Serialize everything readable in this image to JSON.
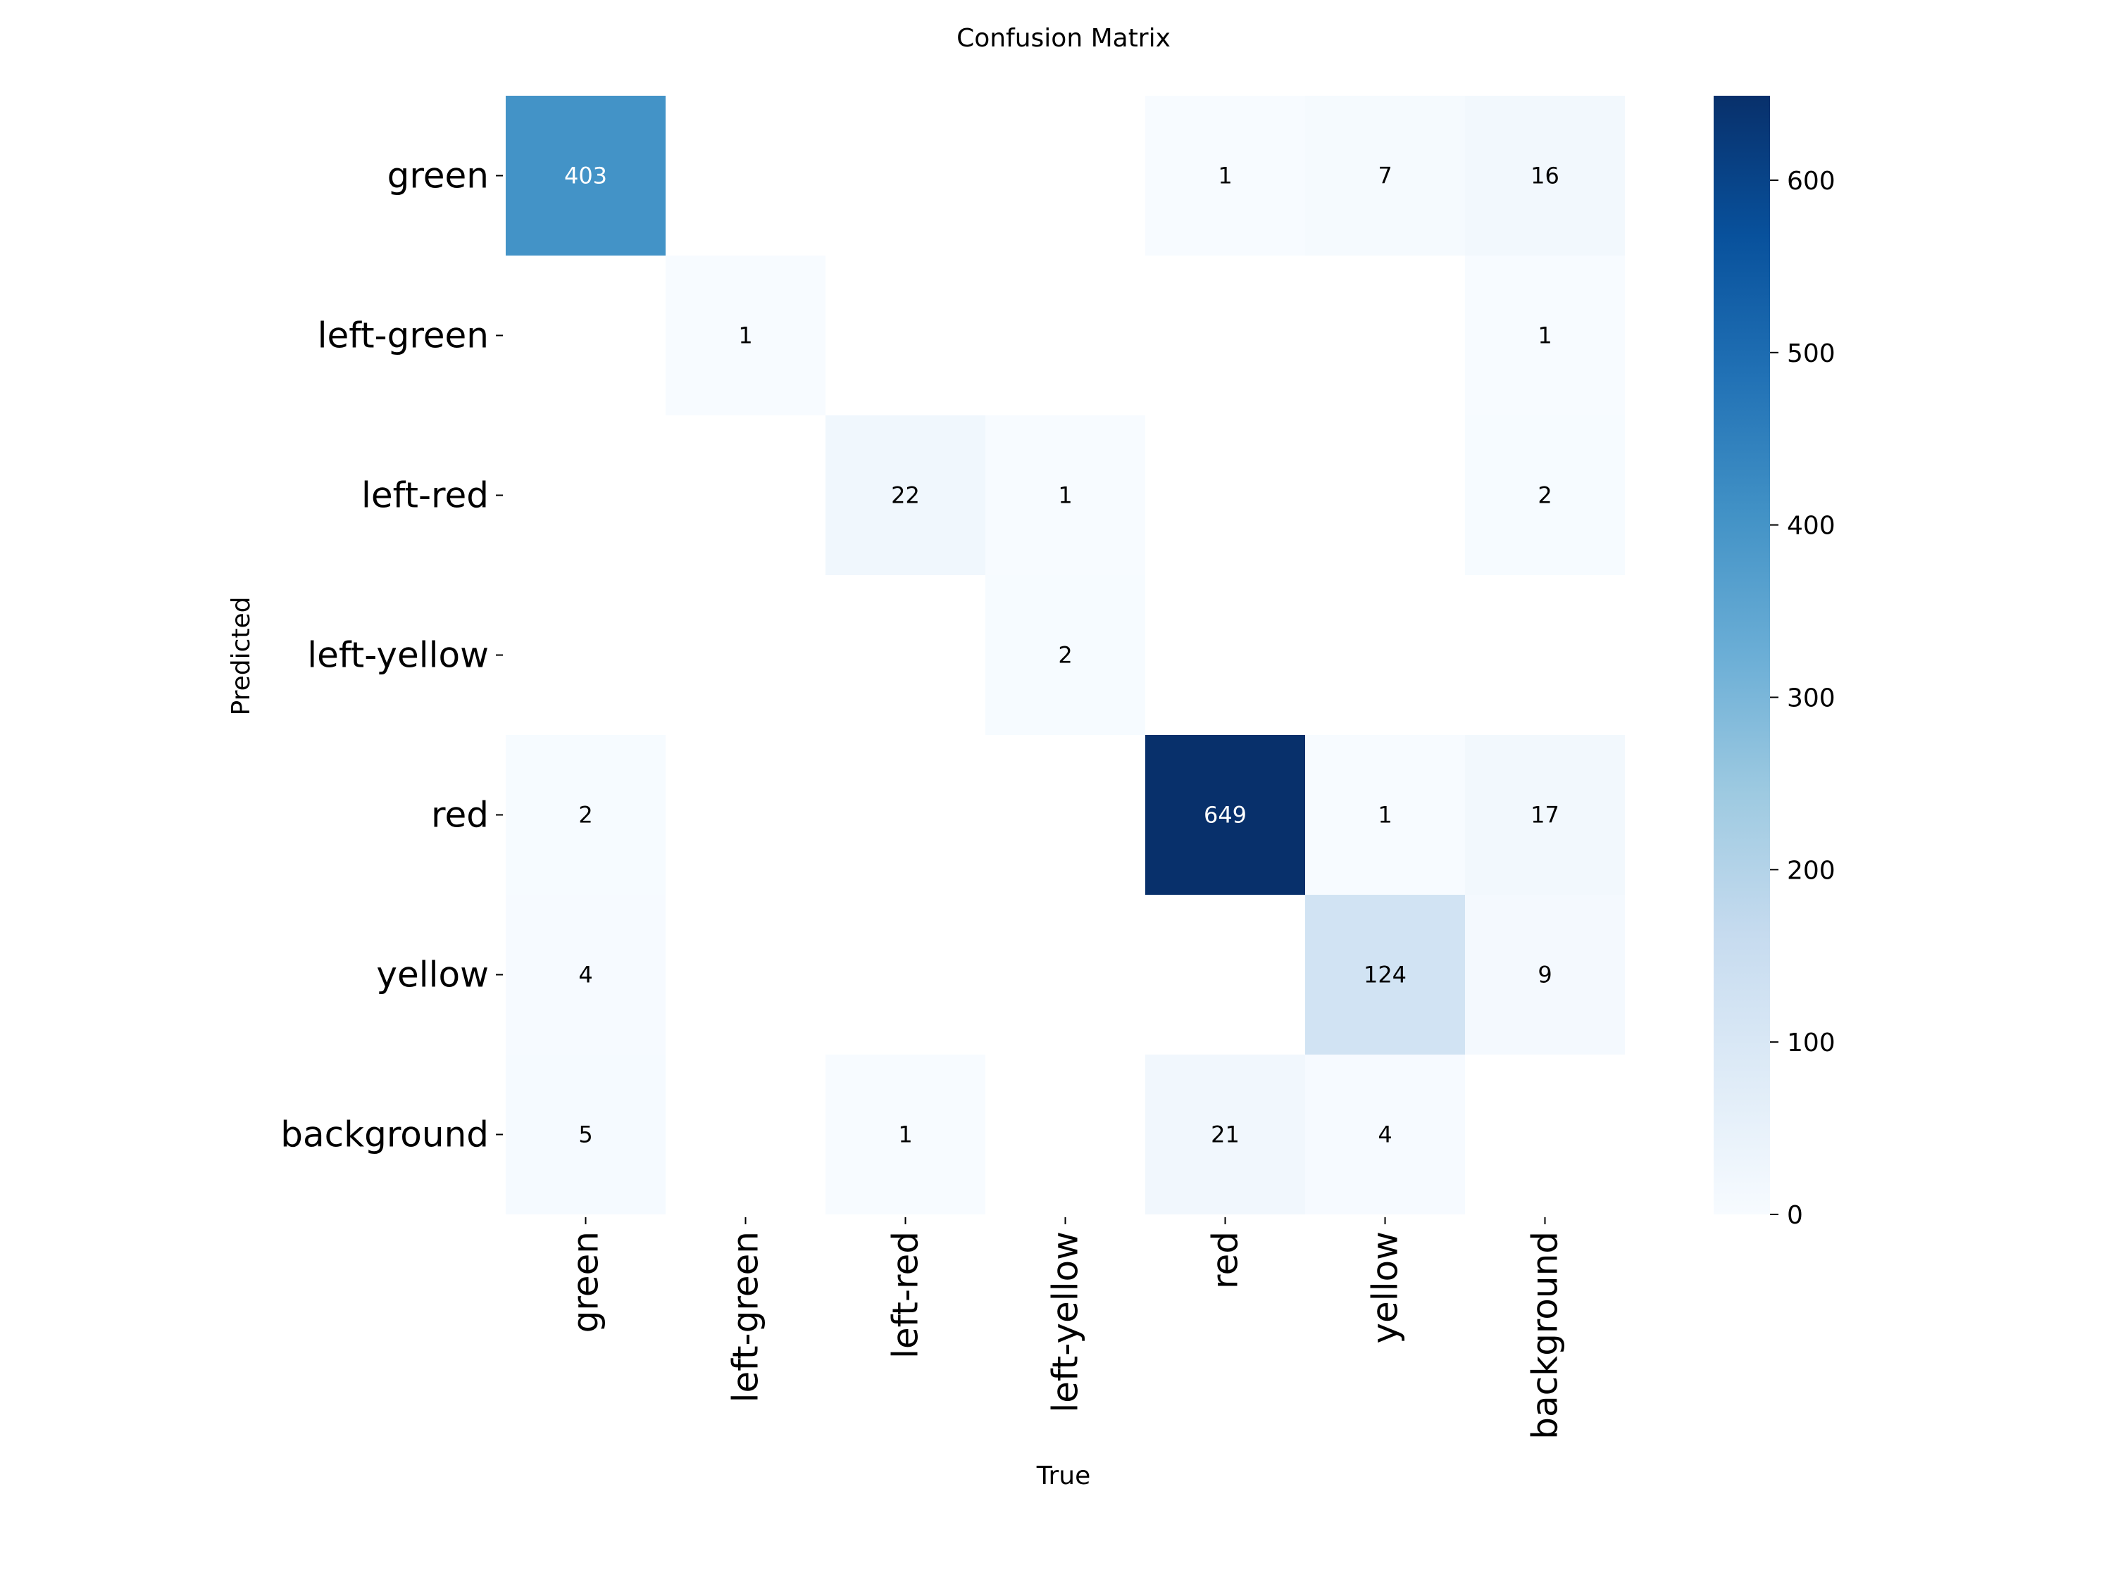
{
  "chart_data": {
    "type": "heatmap",
    "title": "Confusion Matrix",
    "xlabel": "True",
    "ylabel": "Predicted",
    "x_categories": [
      "green",
      "left-green",
      "left-red",
      "left-yellow",
      "red",
      "yellow",
      "background"
    ],
    "y_categories": [
      "green",
      "left-green",
      "left-red",
      "left-yellow",
      "red",
      "yellow",
      "background"
    ],
    "matrix": [
      [
        403,
        null,
        null,
        null,
        1,
        7,
        16
      ],
      [
        null,
        1,
        null,
        null,
        null,
        null,
        1
      ],
      [
        null,
        null,
        22,
        1,
        null,
        null,
        2
      ],
      [
        null,
        null,
        null,
        2,
        null,
        null,
        null
      ],
      [
        2,
        null,
        null,
        null,
        649,
        1,
        17
      ],
      [
        4,
        null,
        null,
        null,
        null,
        124,
        9
      ],
      [
        5,
        null,
        1,
        null,
        21,
        4,
        null
      ]
    ],
    "colormap": "Blues",
    "colorbar": {
      "range": [
        0,
        649
      ],
      "ticks": [
        0,
        100,
        200,
        300,
        400,
        500,
        600
      ]
    }
  }
}
